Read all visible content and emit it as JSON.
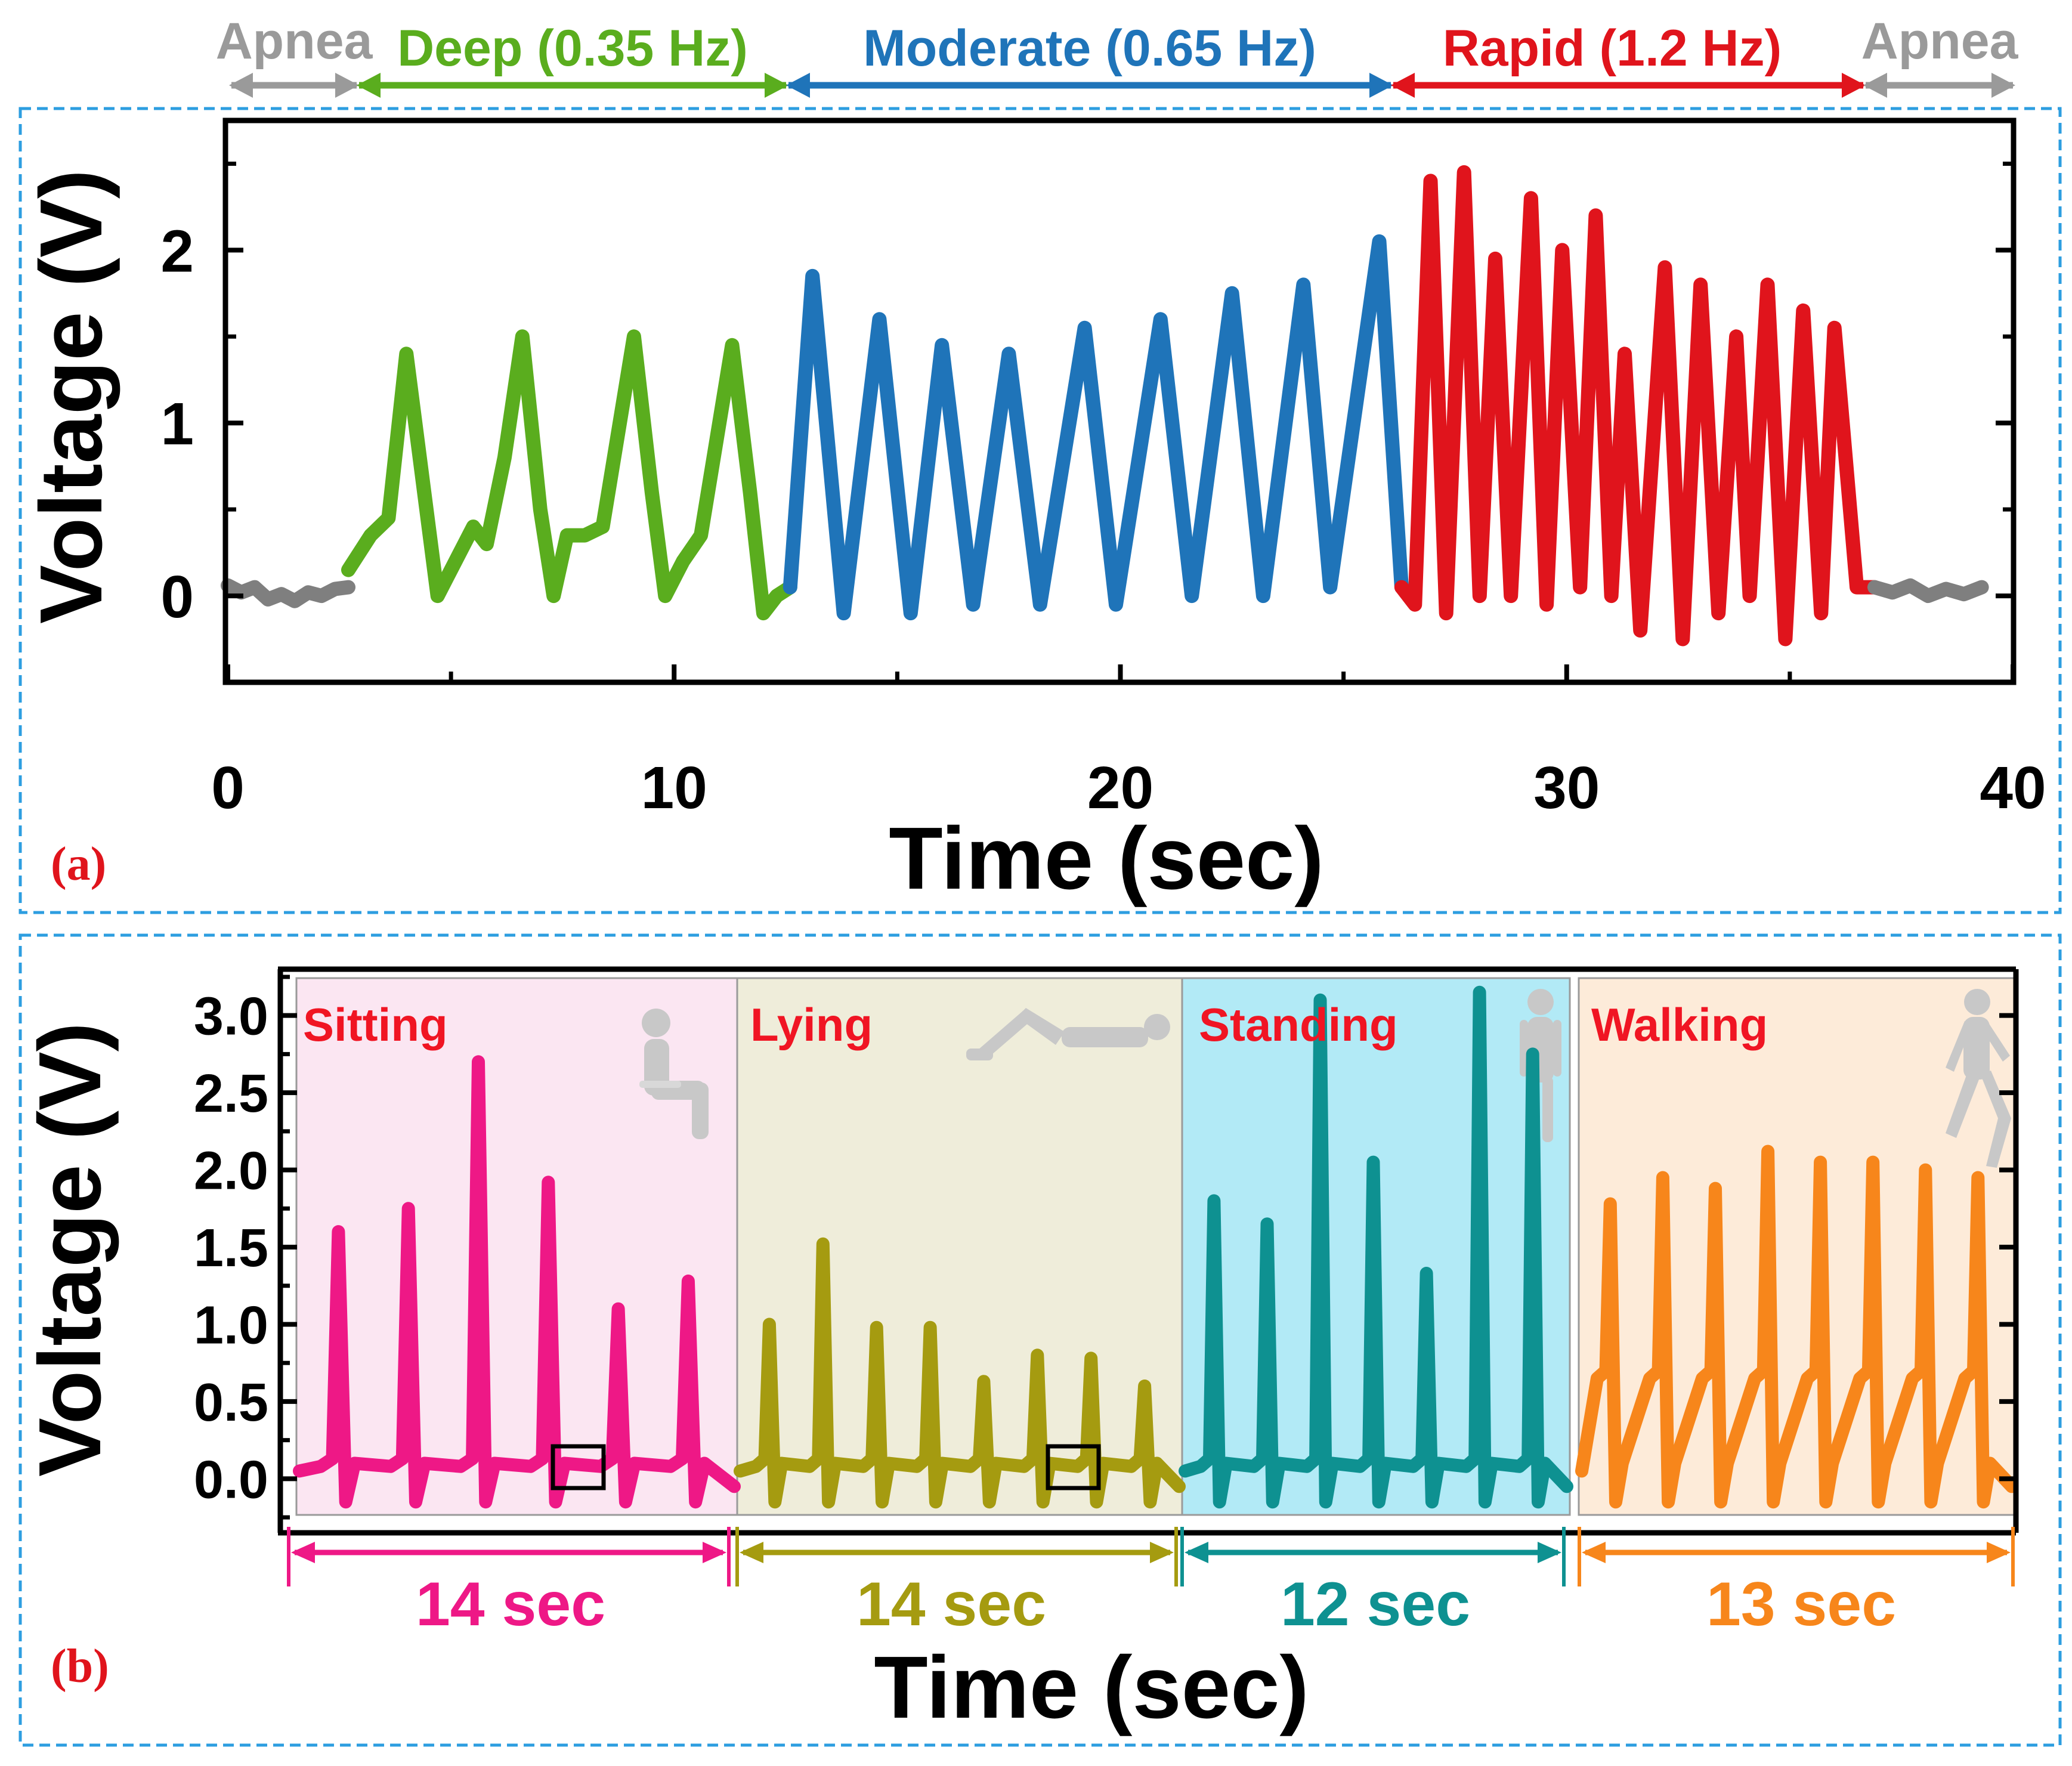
{
  "chart_data": [
    {
      "type": "line",
      "panel_label": "(a)",
      "xlabel": "Time (sec)",
      "ylabel": "Voltage (V)",
      "xlim": [
        0,
        40
      ],
      "ylim": [
        -0.5,
        2.75
      ],
      "x_ticks": [
        0,
        10,
        20,
        30,
        40
      ],
      "y_ticks": [
        0,
        1,
        2
      ],
      "x_tick_labels": [
        "0",
        "10",
        "20",
        "30",
        "40"
      ],
      "y_tick_labels": [
        "0",
        "1",
        "2"
      ],
      "region_labels": [
        {
          "label": "Apnea",
          "x_range": [
            0,
            2.7
          ],
          "color": "#9a9a9a"
        },
        {
          "label": "Deep (0.35 Hz)",
          "x_range": [
            2.7,
            12.6
          ],
          "color": "#5aad1e"
        },
        {
          "label": "Moderate (0.65 Hz)",
          "x_range": [
            12.6,
            26.3
          ],
          "color": "#1f74b9"
        },
        {
          "label": "Rapid (1.2 Hz)",
          "x_range": [
            26.3,
            36.9
          ],
          "color": "#e0141c"
        },
        {
          "label": "Apnea",
          "x_range": [
            36.9,
            39.3
          ],
          "color": "#9a9a9a"
        }
      ],
      "series": [
        {
          "name": "Apnea",
          "color": "#7f7f7f",
          "x": [
            0,
            0.3,
            0.6,
            0.9,
            1.2,
            1.5,
            1.8,
            2.1,
            2.4,
            2.7
          ],
          "y": [
            0.06,
            0.02,
            0.05,
            -0.02,
            0.01,
            -0.03,
            0.02,
            0.0,
            0.04,
            0.05
          ]
        },
        {
          "name": "Deep (0.35 Hz)",
          "color": "#5aad1e",
          "x": [
            2.7,
            3.2,
            3.6,
            4.0,
            4.4,
            4.7,
            5.0,
            5.5,
            5.8,
            6.2,
            6.6,
            7.0,
            7.3,
            7.6,
            8.0,
            8.4,
            9.1,
            9.5,
            9.8,
            10.2,
            10.6,
            11.3,
            11.7,
            12.0,
            12.3,
            12.6
          ],
          "y": [
            0.15,
            0.35,
            0.45,
            1.4,
            0.6,
            0.0,
            0.15,
            0.4,
            0.3,
            0.8,
            1.5,
            0.5,
            0.0,
            0.35,
            0.35,
            0.4,
            1.5,
            0.6,
            0.0,
            0.2,
            0.35,
            1.45,
            0.6,
            -0.1,
            0.0,
            0.05
          ]
        },
        {
          "name": "Moderate (0.65 Hz)",
          "color": "#1f74b9",
          "x": [
            12.6,
            13.1,
            13.8,
            14.6,
            15.3,
            16.0,
            16.7,
            17.5,
            18.2,
            19.2,
            19.9,
            20.9,
            21.6,
            22.5,
            23.2,
            24.1,
            24.7,
            25.8,
            26.3
          ],
          "y": [
            0.05,
            1.85,
            -0.1,
            1.6,
            -0.1,
            1.45,
            -0.05,
            1.4,
            -0.05,
            1.55,
            -0.05,
            1.6,
            0.0,
            1.75,
            0.0,
            1.8,
            0.05,
            2.05,
            0.05
          ]
        },
        {
          "name": "Rapid (1.2 Hz)",
          "color": "#e0141c",
          "x": [
            26.3,
            26.6,
            26.95,
            27.3,
            27.7,
            28.05,
            28.4,
            28.75,
            29.2,
            29.55,
            29.9,
            30.3,
            30.65,
            31.0,
            31.3,
            31.65,
            32.2,
            32.6,
            33.0,
            33.4,
            33.8,
            34.1,
            34.5,
            34.9,
            35.3,
            35.7,
            36.0,
            36.5,
            36.9
          ],
          "y": [
            0.05,
            -0.05,
            2.4,
            -0.1,
            2.45,
            0.0,
            1.95,
            0.0,
            2.3,
            -0.05,
            2.0,
            0.05,
            2.2,
            0.0,
            1.4,
            -0.2,
            1.9,
            -0.25,
            1.8,
            -0.1,
            1.5,
            0.0,
            1.8,
            -0.25,
            1.65,
            -0.1,
            1.55,
            0.05,
            0.05
          ]
        },
        {
          "name": "Apnea",
          "color": "#7f7f7f",
          "x": [
            36.9,
            37.3,
            37.7,
            38.1,
            38.5,
            38.9,
            39.3
          ],
          "y": [
            0.05,
            0.02,
            0.06,
            0.0,
            0.04,
            0.01,
            0.05
          ]
        }
      ]
    },
    {
      "type": "line",
      "panel_label": "(b)",
      "xlabel": "Time (sec)",
      "ylabel": "Voltage (V)",
      "ylim": [
        -0.35,
        3.3
      ],
      "y_ticks": [
        0.0,
        0.5,
        1.0,
        1.5,
        2.0,
        2.5,
        3.0
      ],
      "y_tick_labels": [
        "0.0",
        "0.5",
        "1.0",
        "1.5",
        "2.0",
        "2.5",
        "3.0"
      ],
      "segments": [
        {
          "name": "Sitting",
          "duration_label": "14 sec",
          "duration": 14,
          "color": "#ee1886",
          "bg": "#fbe6f2",
          "peaks": [
            1.6,
            1.75,
            2.7,
            1.92,
            1.1,
            1.28
          ]
        },
        {
          "name": "Lying",
          "duration_label": "14 sec",
          "duration": 14,
          "color": "#a59b10",
          "bg": "#efedda",
          "peaks": [
            1.0,
            1.52,
            0.98,
            0.98,
            0.63,
            0.8,
            0.78,
            0.6
          ]
        },
        {
          "name": "Standing",
          "duration_label": "12 sec",
          "duration": 12,
          "color": "#0e9191",
          "bg": "#b2eaf6",
          "peaks": [
            1.8,
            1.65,
            3.1,
            2.05,
            1.33,
            3.15,
            2.75
          ]
        },
        {
          "name": "Walking",
          "duration_label": "13 sec",
          "duration": 13,
          "color": "#f7861b",
          "bg": "#fdebd9",
          "peaks": [
            1.78,
            1.95,
            1.88,
            2.12,
            2.05,
            2.05,
            2.0,
            1.95
          ]
        }
      ]
    }
  ]
}
